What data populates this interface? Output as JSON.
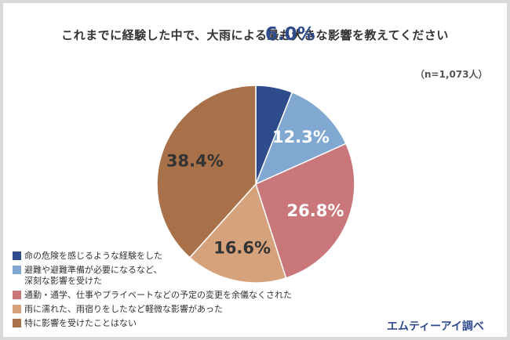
{
  "title": "これまでに経験した中で、大雨による最も大きな影響を教えてください",
  "sample_note": "（n=1,073人）",
  "source": "エムティーアイ調べ",
  "chart_data": {
    "type": "pie",
    "unit": "%",
    "start": "12 o'clock",
    "direction": "clockwise",
    "slices": [
      {
        "label": "命の危険を感じるような経験をした",
        "value": 6.0,
        "display": "6.0%",
        "color": "#2e4b8c",
        "label_color": "#2e4b8c",
        "label_outside": true
      },
      {
        "label": "避難や避難準備が必要になるなど、\n深刻な影響を受けた",
        "value": 12.3,
        "display": "12.3%",
        "color": "#80a8d1",
        "label_color": "#ffffff",
        "label_outside": false
      },
      {
        "label": "通勤・通学、仕事やプライベートなどの予定の変更を余儀なくされた",
        "value": 26.8,
        "display": "26.8%",
        "color": "#c9777a",
        "label_color": "#ffffff",
        "label_outside": false
      },
      {
        "label": "雨に濡れた、雨宿りをしたなど軽微な影響があった",
        "value": 16.6,
        "display": "16.6%",
        "color": "#d6a27c",
        "label_color": "#333333",
        "label_outside": false
      },
      {
        "label": "特に影響を受けたことはない",
        "value": 38.4,
        "display": "38.4%",
        "color": "#a8714a",
        "label_color": "#333333",
        "label_outside": false
      }
    ]
  }
}
